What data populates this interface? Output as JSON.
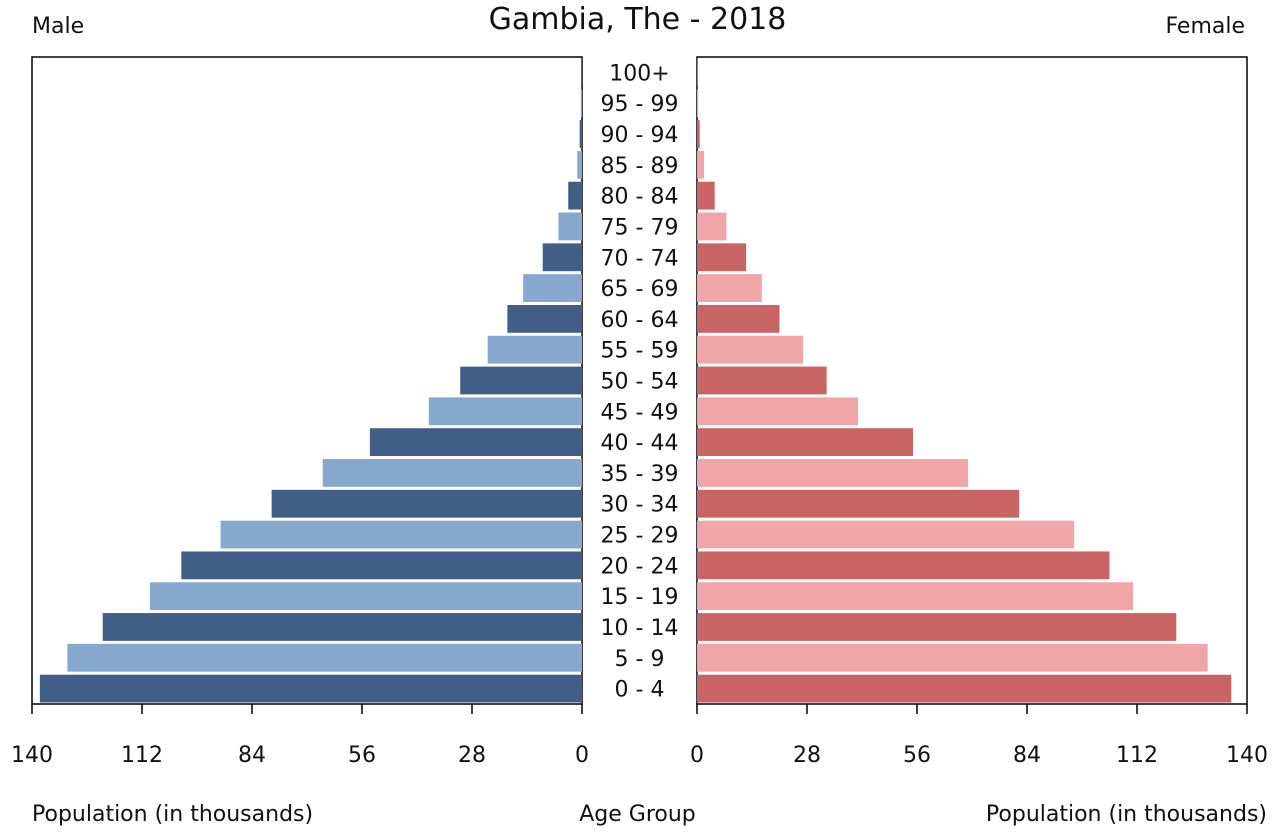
{
  "chart_data": {
    "type": "bar",
    "title": "Gambia, The - 2018",
    "left_label": "Male",
    "right_label": "Female",
    "xlabel_left": "Population (in thousands)",
    "xlabel_center": "Age Group",
    "xlabel_right": "Population (in thousands)",
    "xlim": [
      0,
      140
    ],
    "ticks": [
      "0",
      "28",
      "56",
      "84",
      "112",
      "140"
    ],
    "categories": [
      "0 - 4",
      "5 - 9",
      "10 - 14",
      "15 - 19",
      "20 - 24",
      "25 - 29",
      "30 - 34",
      "35 - 39",
      "40 - 44",
      "45 - 49",
      "50 - 54",
      "55 - 59",
      "60 - 64",
      "65 - 69",
      "70 - 74",
      "75 - 79",
      "80 - 84",
      "85 - 89",
      "90 - 94",
      "95 - 99",
      "100+"
    ],
    "series": [
      {
        "name": "Male",
        "values": [
          138,
          131,
          122,
          110,
          102,
          92,
          79,
          66,
          54,
          39,
          31,
          24,
          19,
          15,
          10,
          6,
          3.5,
          1.2,
          0.6,
          0.3,
          0.2
        ]
      },
      {
        "name": "Female",
        "values": [
          136,
          130,
          122,
          111,
          105,
          96,
          82,
          69,
          55,
          41,
          33,
          27,
          21,
          16.5,
          12.5,
          7.5,
          4.5,
          1.8,
          0.7,
          0.3,
          0.2
        ]
      }
    ],
    "colors": {
      "male_dark": "#415f86",
      "male_light": "#87a8cd",
      "female_dark": "#c96464",
      "female_light": "#f0a6a8"
    }
  }
}
